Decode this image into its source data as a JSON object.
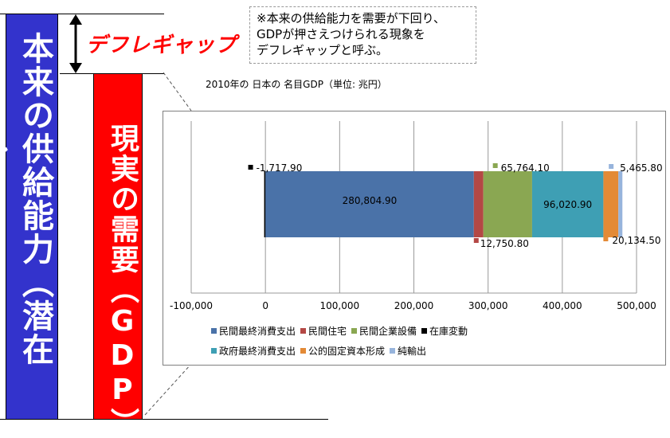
{
  "left_labels": {
    "potential_gdp": "本来の供給能力（潜在GDP）",
    "actual_demand": "現実の需要（GDP）",
    "deflation_gap": "デフレギャップ"
  },
  "note": "※本来の供給能力を需要が下回り、\nGDPが押さえつけられる現象を\nデフレギャップと呼ぶ。",
  "colors": {
    "potential": "#3333cc",
    "actual": "#ff0000",
    "accent_text": "#ff0000"
  },
  "chart_data": {
    "type": "bar",
    "orientation": "horizontal",
    "stacked": true,
    "title": "2010年の 日本の 名目GDP（単位: 兆円）",
    "xlim": [
      -100000,
      500000
    ],
    "x_ticks": [
      "-100,000",
      "0",
      "100,000",
      "200,000",
      "300,000",
      "400,000",
      "500,000"
    ],
    "grid": "vertical",
    "legend_position": "bottom",
    "series": [
      {
        "name": "民間最終消費支出",
        "value": 280804.9,
        "label": "280,804.90",
        "color": "#4a72a8"
      },
      {
        "name": "民間住宅",
        "value": 12750.8,
        "label": "12,750.80",
        "color": "#b44845"
      },
      {
        "name": "民間企業設備",
        "value": 65764.1,
        "label": "65,764.10",
        "color": "#8aa752"
      },
      {
        "name": "在庫変動",
        "value": -1717.9,
        "label": "-1,717.90",
        "color": "#000000"
      },
      {
        "name": "政府最終消費支出",
        "value": 96020.9,
        "label": "96,020.90",
        "color": "#3e9fb4"
      },
      {
        "name": "公的固定資本形成",
        "value": 20134.5,
        "label": "20,134.50",
        "color": "#e38a36"
      },
      {
        "name": "純輸出",
        "value": 5465.8,
        "label": "5,465.80",
        "color": "#97b4dc"
      }
    ]
  }
}
